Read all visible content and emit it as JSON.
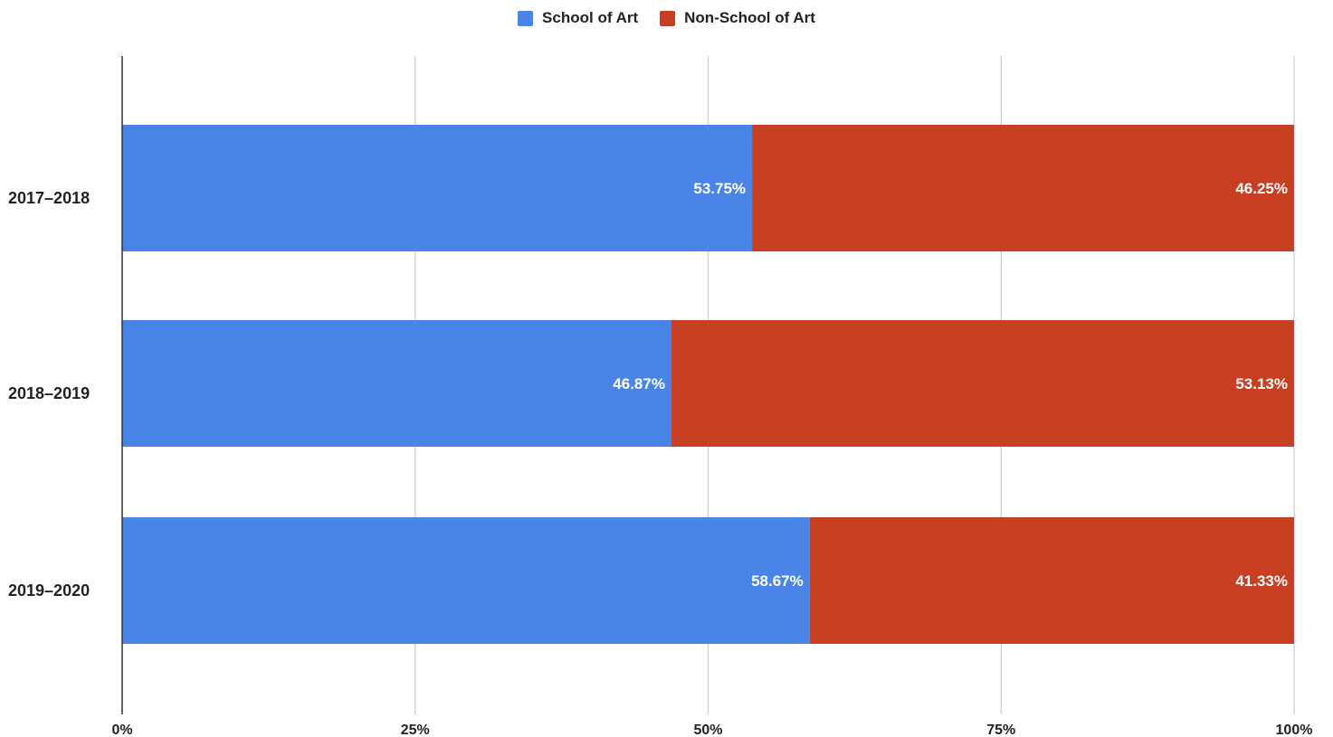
{
  "chart_data": {
    "type": "bar",
    "orientation": "horizontal",
    "stacked": "percent",
    "categories": [
      "2017–2018",
      "2018–2019",
      "2019–2020"
    ],
    "series": [
      {
        "name": "School of Art",
        "values": [
          53.75,
          46.87,
          58.67
        ],
        "labels": [
          "53.75%",
          "46.87%",
          "58.67%"
        ],
        "color": "#4a84e6"
      },
      {
        "name": "Non-School of Art",
        "values": [
          46.25,
          53.13,
          41.33
        ],
        "labels": [
          "46.25%",
          "53.13%",
          "41.33%"
        ],
        "color": "#c73e22"
      }
    ],
    "x_ticks": [
      "0%",
      "25%",
      "50%",
      "75%",
      "100%"
    ],
    "xlim": [
      0,
      100
    ],
    "grid": true,
    "legend_position": "top-center"
  }
}
